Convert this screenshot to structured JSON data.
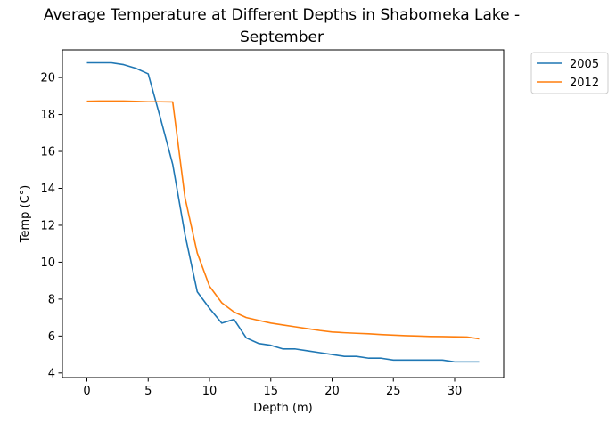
{
  "chart_data": {
    "type": "line",
    "title_lines": [
      "Average Temperature at Different Depths in Shabomeka Lake -",
      "September"
    ],
    "xlabel": "Depth (m)",
    "ylabel": "Temp (C°)",
    "xlim": [
      -2,
      34
    ],
    "ylim": [
      3.75,
      21.5
    ],
    "xticks": [
      0,
      5,
      10,
      15,
      20,
      25,
      30
    ],
    "yticks": [
      4,
      6,
      8,
      10,
      12,
      14,
      16,
      18,
      20
    ],
    "grid": false,
    "legend_position": "outside-top-right",
    "x": [
      0,
      1,
      2,
      3,
      4,
      5,
      6,
      7,
      8,
      9,
      10,
      11,
      12,
      13,
      14,
      15,
      16,
      17,
      18,
      19,
      20,
      21,
      22,
      23,
      24,
      25,
      26,
      27,
      28,
      29,
      30,
      31,
      32
    ],
    "series": [
      {
        "name": "2005",
        "color": "#1f77b4",
        "values": [
          20.8,
          20.8,
          20.8,
          20.7,
          20.5,
          20.2,
          17.8,
          15.3,
          11.5,
          8.4,
          7.5,
          6.7,
          6.9,
          5.9,
          5.6,
          5.5,
          5.3,
          5.3,
          5.2,
          5.1,
          5.0,
          4.9,
          4.9,
          4.8,
          4.8,
          4.7,
          4.7,
          4.7,
          4.7,
          4.7,
          4.6,
          4.6,
          4.6
        ]
      },
      {
        "name": "2012",
        "color": "#ff7f0e",
        "values": [
          18.72,
          18.73,
          18.73,
          18.73,
          18.71,
          18.69,
          18.69,
          18.68,
          13.5,
          10.5,
          8.7,
          7.8,
          7.3,
          7.0,
          6.85,
          6.7,
          6.6,
          6.5,
          6.4,
          6.3,
          6.22,
          6.18,
          6.15,
          6.12,
          6.08,
          6.05,
          6.02,
          6.0,
          5.98,
          5.97,
          5.96,
          5.95,
          5.85
        ]
      }
    ]
  }
}
